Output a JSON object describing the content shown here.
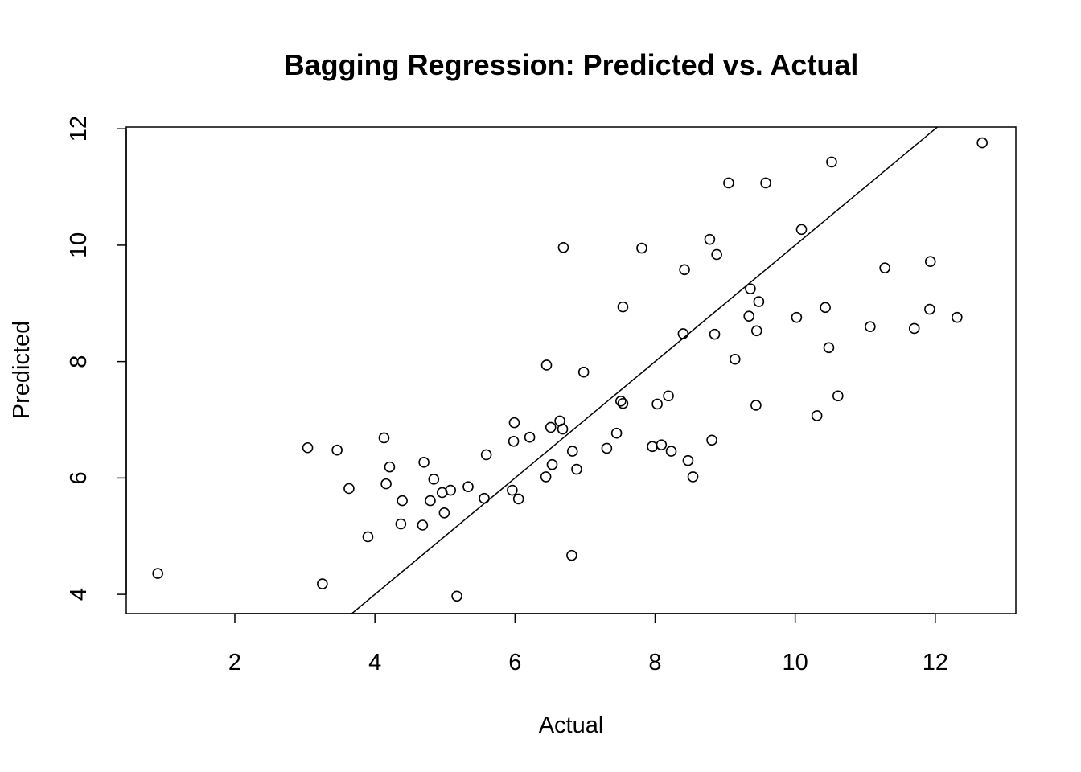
{
  "chart_data": {
    "type": "scatter",
    "title": "Bagging Regression: Predicted vs. Actual",
    "xlabel": "Actual",
    "ylabel": "Predicted",
    "xlim": [
      0.45,
      13.15
    ],
    "ylim": [
      3.67,
      12.03
    ],
    "x_ticks": [
      2,
      4,
      6,
      8,
      10,
      12
    ],
    "y_ticks": [
      4,
      6,
      8,
      10,
      12
    ],
    "grid": false,
    "reference_line": {
      "intercept": 0,
      "slope": 1
    },
    "points": [
      {
        "x": 0.9,
        "y": 4.36
      },
      {
        "x": 3.04,
        "y": 6.52
      },
      {
        "x": 3.25,
        "y": 4.18
      },
      {
        "x": 3.46,
        "y": 6.48
      },
      {
        "x": 3.63,
        "y": 5.82
      },
      {
        "x": 3.9,
        "y": 4.99
      },
      {
        "x": 4.13,
        "y": 6.69
      },
      {
        "x": 4.16,
        "y": 5.9
      },
      {
        "x": 4.21,
        "y": 6.19
      },
      {
        "x": 4.37,
        "y": 5.21
      },
      {
        "x": 4.39,
        "y": 5.61
      },
      {
        "x": 4.68,
        "y": 5.19
      },
      {
        "x": 4.7,
        "y": 6.27
      },
      {
        "x": 4.79,
        "y": 5.61
      },
      {
        "x": 4.84,
        "y": 5.98
      },
      {
        "x": 4.96,
        "y": 5.75
      },
      {
        "x": 4.99,
        "y": 5.4
      },
      {
        "x": 5.08,
        "y": 5.79
      },
      {
        "x": 5.17,
        "y": 3.97
      },
      {
        "x": 5.33,
        "y": 5.85
      },
      {
        "x": 5.56,
        "y": 5.65
      },
      {
        "x": 5.59,
        "y": 6.4
      },
      {
        "x": 5.96,
        "y": 5.79
      },
      {
        "x": 5.98,
        "y": 6.63
      },
      {
        "x": 5.99,
        "y": 6.95
      },
      {
        "x": 6.05,
        "y": 5.64
      },
      {
        "x": 6.21,
        "y": 6.7
      },
      {
        "x": 6.44,
        "y": 6.02
      },
      {
        "x": 6.45,
        "y": 7.94
      },
      {
        "x": 6.51,
        "y": 6.87
      },
      {
        "x": 6.53,
        "y": 6.23
      },
      {
        "x": 6.64,
        "y": 6.98
      },
      {
        "x": 6.68,
        "y": 6.84
      },
      {
        "x": 6.69,
        "y": 9.96
      },
      {
        "x": 6.81,
        "y": 4.67
      },
      {
        "x": 6.82,
        "y": 6.46
      },
      {
        "x": 6.88,
        "y": 6.15
      },
      {
        "x": 6.98,
        "y": 7.82
      },
      {
        "x": 7.31,
        "y": 6.51
      },
      {
        "x": 7.45,
        "y": 6.77
      },
      {
        "x": 7.51,
        "y": 7.32
      },
      {
        "x": 7.54,
        "y": 7.28
      },
      {
        "x": 7.54,
        "y": 8.94
      },
      {
        "x": 7.81,
        "y": 9.95
      },
      {
        "x": 7.96,
        "y": 6.54
      },
      {
        "x": 8.03,
        "y": 7.27
      },
      {
        "x": 8.09,
        "y": 6.57
      },
      {
        "x": 8.19,
        "y": 7.41
      },
      {
        "x": 8.23,
        "y": 6.46
      },
      {
        "x": 8.4,
        "y": 8.48
      },
      {
        "x": 8.42,
        "y": 9.58
      },
      {
        "x": 8.47,
        "y": 6.3
      },
      {
        "x": 8.54,
        "y": 6.02
      },
      {
        "x": 8.78,
        "y": 10.1
      },
      {
        "x": 8.81,
        "y": 6.65
      },
      {
        "x": 8.85,
        "y": 8.47
      },
      {
        "x": 8.88,
        "y": 9.84
      },
      {
        "x": 9.05,
        "y": 11.07
      },
      {
        "x": 9.14,
        "y": 8.04
      },
      {
        "x": 9.34,
        "y": 8.78
      },
      {
        "x": 9.36,
        "y": 9.25
      },
      {
        "x": 9.44,
        "y": 7.25
      },
      {
        "x": 9.45,
        "y": 8.53
      },
      {
        "x": 9.48,
        "y": 9.03
      },
      {
        "x": 9.58,
        "y": 11.07
      },
      {
        "x": 10.02,
        "y": 8.76
      },
      {
        "x": 10.09,
        "y": 10.27
      },
      {
        "x": 10.31,
        "y": 7.07
      },
      {
        "x": 10.43,
        "y": 8.93
      },
      {
        "x": 10.48,
        "y": 8.24
      },
      {
        "x": 10.52,
        "y": 11.43
      },
      {
        "x": 10.61,
        "y": 7.41
      },
      {
        "x": 11.07,
        "y": 8.6
      },
      {
        "x": 11.28,
        "y": 9.61
      },
      {
        "x": 11.7,
        "y": 8.57
      },
      {
        "x": 11.92,
        "y": 8.9
      },
      {
        "x": 11.93,
        "y": 9.72
      },
      {
        "x": 12.31,
        "y": 8.76
      },
      {
        "x": 12.67,
        "y": 11.76
      }
    ]
  }
}
